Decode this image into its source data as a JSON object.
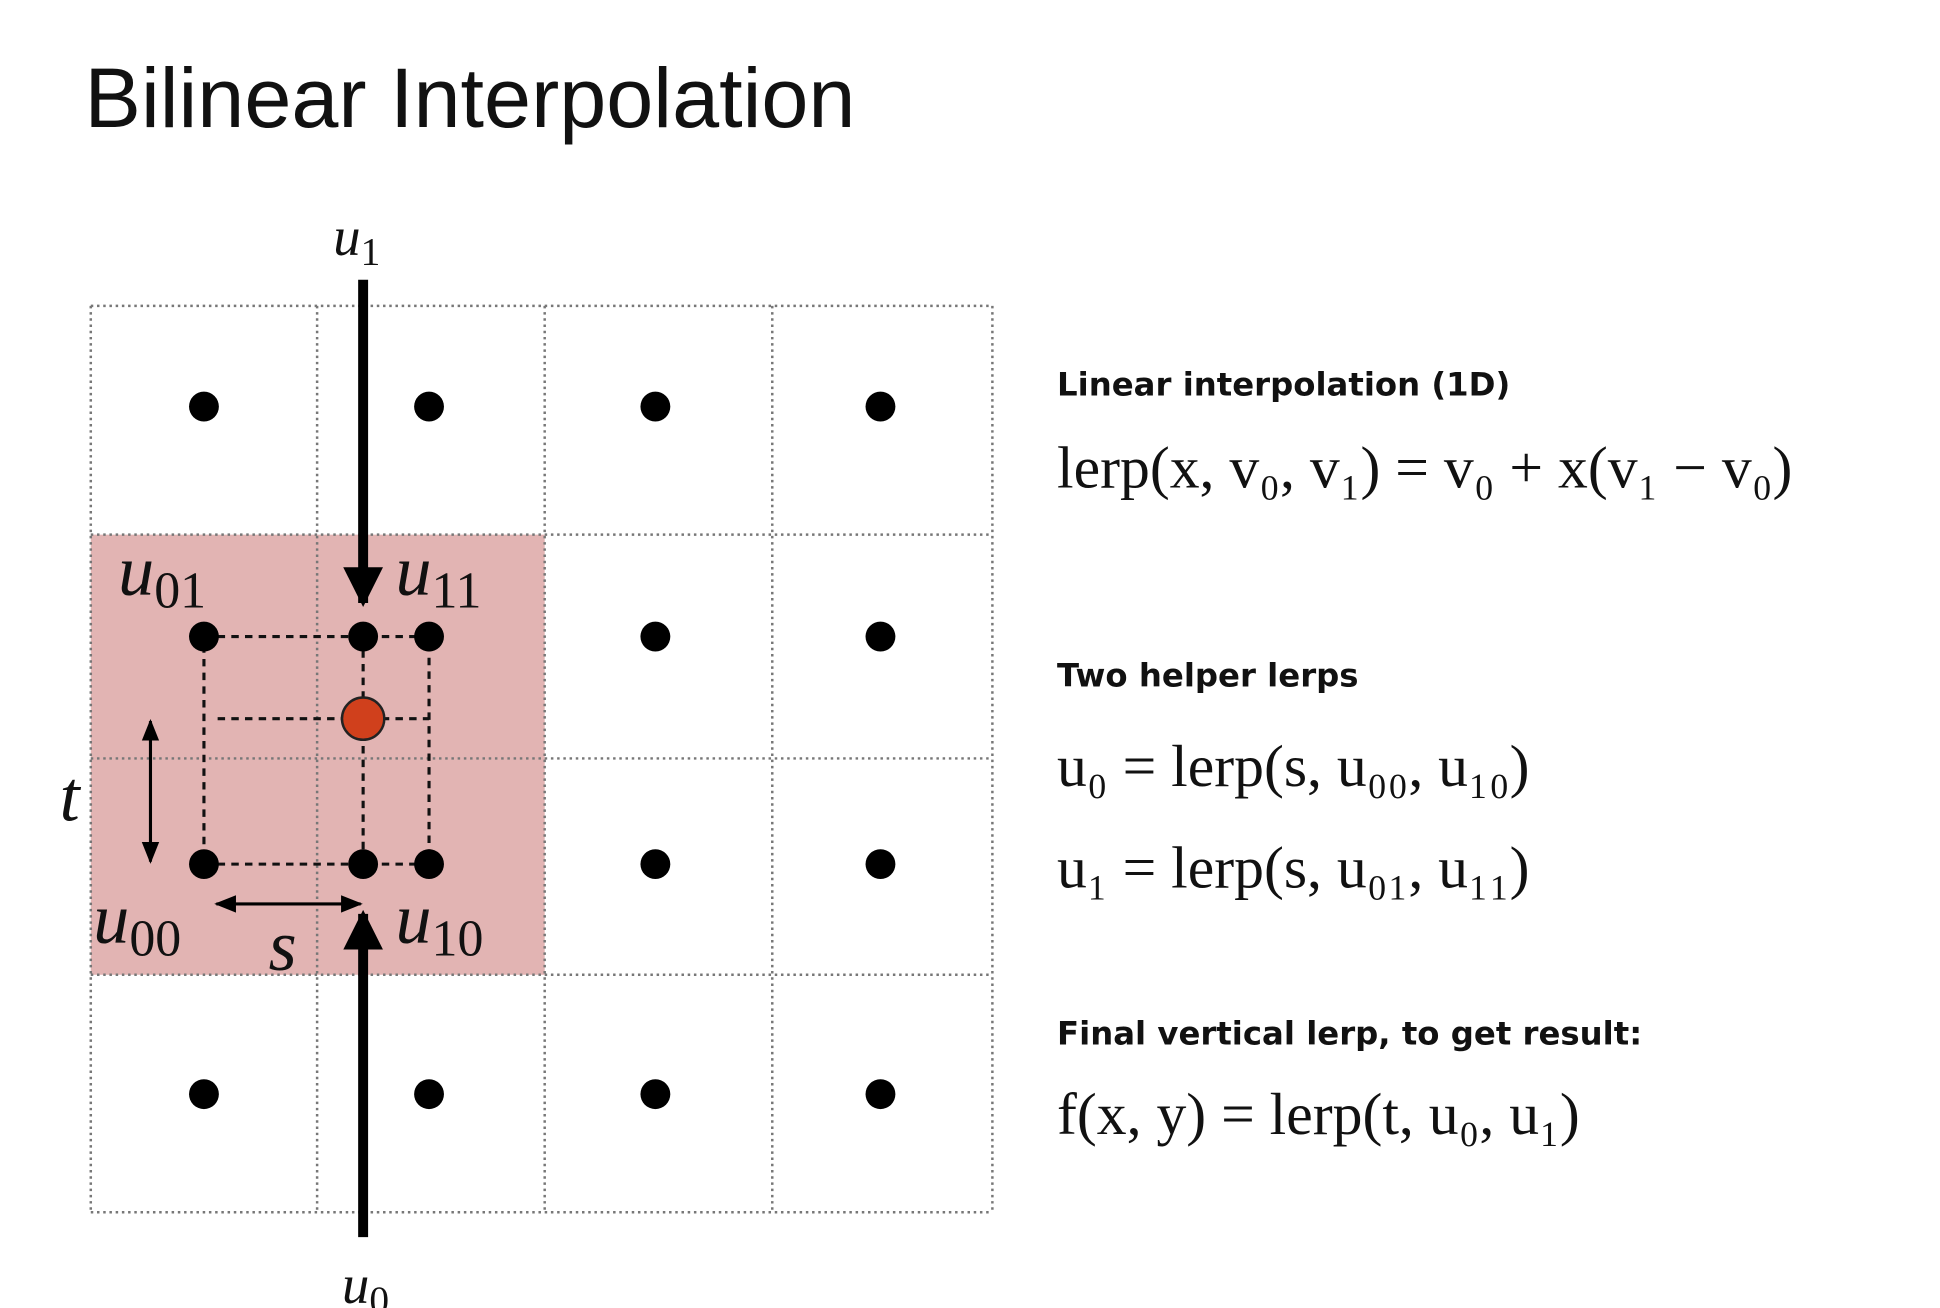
{
  "header": {
    "title": "Bilinear Interpolation"
  },
  "diagram": {
    "labels": [
      {
        "base": "u",
        "sub": "1"
      },
      {
        "base": "u",
        "sub": "01"
      },
      {
        "base": "u",
        "sub": "11"
      },
      {
        "base": "u",
        "sub": "00"
      },
      {
        "base": "u",
        "sub": "10"
      },
      {
        "base": "t"
      },
      {
        "base": "s"
      },
      {
        "base": "u",
        "sub": "0"
      }
    ]
  },
  "sections": [
    {
      "heading": "Linear interpolation (1D)",
      "formulas": [
        "lerp(x, v₀, v₁) = v₀ + x(v₁ − v₀)"
      ]
    },
    {
      "heading": "Two helper lerps",
      "formulas": [
        "u₀ = lerp(s, u₀₀, u₁₀)",
        "u₁ = lerp(s, u₀₁, u₁₁)"
      ]
    },
    {
      "heading": "Final vertical lerp, to get result:",
      "formulas": [
        "f(x, y) = lerp(t, u₀, u₁)"
      ]
    }
  ]
}
